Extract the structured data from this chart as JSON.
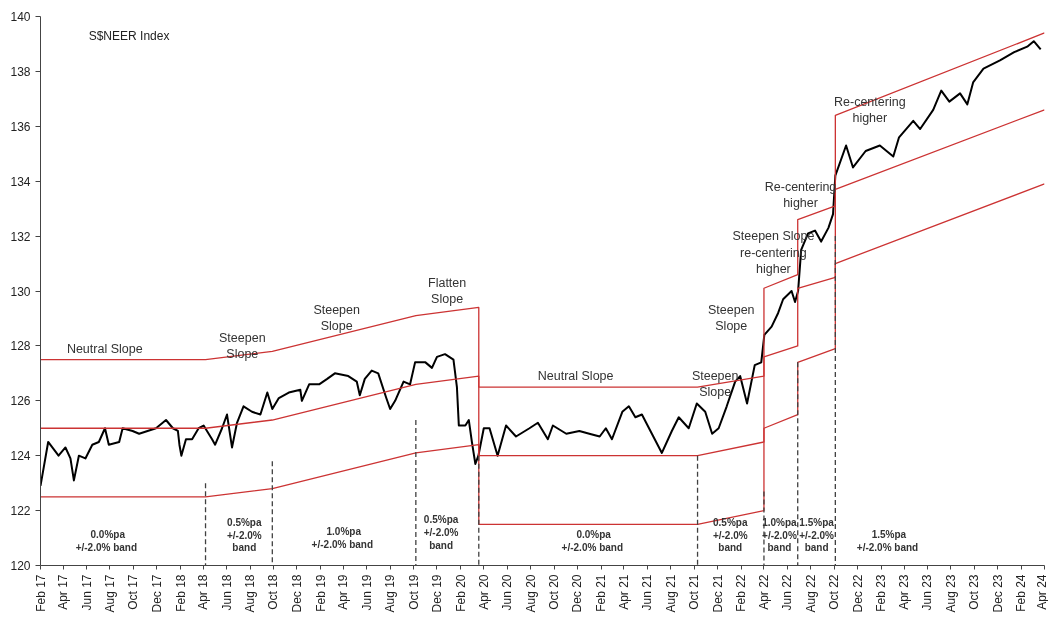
{
  "chart_data": {
    "type": "line",
    "title": "S$NEER Index",
    "xlim": [
      "2017-02-01",
      "2024-04-01"
    ],
    "xticks": [
      {
        "value": "2017-02",
        "label": "Feb 17"
      },
      {
        "value": "2017-04",
        "label": "Apr 17"
      },
      {
        "value": "2017-06",
        "label": "Jun 17"
      },
      {
        "value": "2017-08",
        "label": "Aug 17"
      },
      {
        "value": "2017-10",
        "label": "Oct 17"
      },
      {
        "value": "2017-12",
        "label": "Dec 17"
      },
      {
        "value": "2018-02",
        "label": "Feb 18"
      },
      {
        "value": "2018-04",
        "label": "Apr 18"
      },
      {
        "value": "2018-06",
        "label": "Jun 18"
      },
      {
        "value": "2018-08",
        "label": "Aug 18"
      },
      {
        "value": "2018-10",
        "label": "Oct 18"
      },
      {
        "value": "2018-12",
        "label": "Dec 18"
      },
      {
        "value": "2019-02",
        "label": "Feb 19"
      },
      {
        "value": "2019-04",
        "label": "Apr 19"
      },
      {
        "value": "2019-06",
        "label": "Jun 19"
      },
      {
        "value": "2019-08",
        "label": "Aug 19"
      },
      {
        "value": "2019-10",
        "label": "Oct 19"
      },
      {
        "value": "2019-12",
        "label": "Dec 19"
      },
      {
        "value": "2020-02",
        "label": "Feb 20"
      },
      {
        "value": "2020-04",
        "label": "Apr 20"
      },
      {
        "value": "2020-06",
        "label": "Jun 20"
      },
      {
        "value": "2020-08",
        "label": "Aug 20"
      },
      {
        "value": "2020-10",
        "label": "Oct 20"
      },
      {
        "value": "2020-12",
        "label": "Dec 20"
      },
      {
        "value": "2021-02",
        "label": "Feb 21"
      },
      {
        "value": "2021-04",
        "label": "Apr 21"
      },
      {
        "value": "2021-06",
        "label": "Jun 21"
      },
      {
        "value": "2021-08",
        "label": "Aug 21"
      },
      {
        "value": "2021-10",
        "label": "Oct 21"
      },
      {
        "value": "2021-12",
        "label": "Dec 21"
      },
      {
        "value": "2022-02",
        "label": "Feb 22"
      },
      {
        "value": "2022-04",
        "label": "Apr 22"
      },
      {
        "value": "2022-06",
        "label": "Jun 22"
      },
      {
        "value": "2022-08",
        "label": "Aug 22"
      },
      {
        "value": "2022-10",
        "label": "Oct 22"
      },
      {
        "value": "2022-12",
        "label": "Dec 22"
      },
      {
        "value": "2023-02",
        "label": "Feb 23"
      },
      {
        "value": "2023-04",
        "label": "Apr 23"
      },
      {
        "value": "2023-06",
        "label": "Jun 23"
      },
      {
        "value": "2023-08",
        "label": "Aug 23"
      },
      {
        "value": "2023-10",
        "label": "Oct 23"
      },
      {
        "value": "2023-12",
        "label": "Dec 23"
      },
      {
        "value": "2024-02",
        "label": "Feb 24"
      },
      {
        "value": "2024-04",
        "label": "Apr 24"
      }
    ],
    "ylim": [
      120,
      140
    ],
    "yticks": [
      120,
      122,
      124,
      126,
      128,
      130,
      132,
      134,
      136,
      138,
      140
    ],
    "series": [
      {
        "color": "#000000",
        "x": [
          "2017-02-01",
          "2017-02-21",
          "2017-03-20",
          "2017-04-07",
          "2017-04-20",
          "2017-04-29",
          "2017-05-12",
          "2017-05-29",
          "2017-06-16",
          "2017-07-03",
          "2017-07-19",
          "2017-07-29",
          "2017-08-25",
          "2017-09-03",
          "2017-09-29",
          "2017-10-16",
          "2017-11-29",
          "2017-12-25",
          "2018-01-12",
          "2018-01-25",
          "2018-01-29",
          "2018-02-03",
          "2018-02-15",
          "2018-03-03",
          "2018-03-20",
          "2018-04-02",
          "2018-04-24",
          "2018-05-02",
          "2018-05-20",
          "2018-06-02",
          "2018-06-15",
          "2018-06-28",
          "2018-07-15",
          "2018-08-06",
          "2018-08-28",
          "2018-09-15",
          "2018-09-28",
          "2018-10-15",
          "2018-11-10",
          "2018-12-10",
          "2018-12-14",
          "2019-01-02",
          "2019-01-28",
          "2019-02-18",
          "2019-03-10",
          "2019-04-14",
          "2019-05-06",
          "2019-05-14",
          "2019-05-27",
          "2019-06-14",
          "2019-07-01",
          "2019-07-22",
          "2019-08-01",
          "2019-08-14",
          "2019-09-05",
          "2019-09-22",
          "2019-10-05",
          "2019-11-01",
          "2019-11-18",
          "2019-12-01",
          "2019-12-22",
          "2020-01-13",
          "2020-01-22",
          "2020-01-27",
          "2020-02-13",
          "2020-02-22",
          "2020-03-01",
          "2020-03-10",
          "2020-03-18",
          "2020-04-01",
          "2020-04-16",
          "2020-05-07",
          "2020-05-29",
          "2020-06-24",
          "2020-07-29",
          "2020-08-20",
          "2020-09-15",
          "2020-09-28",
          "2020-11-02",
          "2020-12-06",
          "2021-01-01",
          "2021-01-28",
          "2021-02-13",
          "2021-03-01",
          "2021-03-28",
          "2021-04-14",
          "2021-05-01",
          "2021-05-18",
          "2021-06-13",
          "2021-07-09",
          "2021-08-04",
          "2021-08-22",
          "2021-09-17",
          "2021-10-08",
          "2021-10-30",
          "2021-11-17",
          "2021-12-04",
          "2021-12-25",
          "2022-01-16",
          "2022-01-29",
          "2022-02-16",
          "2022-03-08",
          "2022-03-25",
          "2022-04-02",
          "2022-04-21",
          "2022-05-08",
          "2022-05-21",
          "2022-06-12",
          "2022-06-21",
          "2022-06-29",
          "2022-07-07",
          "2022-07-25",
          "2022-08-12",
          "2022-08-28",
          "2022-09-16",
          "2022-09-28",
          "2022-10-04",
          "2022-11-01",
          "2022-11-19",
          "2022-12-22",
          "2023-01-28",
          "2023-03-04",
          "2023-03-19",
          "2023-04-25",
          "2023-05-13",
          "2023-06-16",
          "2023-07-07",
          "2023-07-28",
          "2023-08-25",
          "2023-09-13",
          "2023-09-28",
          "2023-10-25",
          "2023-12-07",
          "2024-01-13",
          "2024-02-16",
          "2024-03-04",
          "2024-03-22"
        ],
        "values": [
          122.9,
          124.5,
          124.0,
          124.3,
          123.9,
          123.1,
          124.0,
          123.9,
          124.4,
          124.5,
          125.0,
          124.4,
          124.5,
          125.0,
          124.9,
          124.8,
          125.0,
          125.3,
          125.0,
          124.9,
          124.4,
          124.0,
          124.6,
          124.6,
          125.0,
          125.1,
          124.6,
          124.4,
          125.0,
          125.5,
          124.3,
          125.2,
          125.8,
          125.6,
          125.5,
          126.3,
          125.7,
          126.1,
          126.3,
          126.4,
          126.0,
          126.6,
          126.6,
          126.8,
          127.0,
          126.9,
          126.7,
          126.2,
          126.8,
          127.1,
          127.0,
          126.1,
          125.7,
          126.0,
          126.7,
          126.6,
          127.4,
          127.4,
          127.2,
          127.6,
          127.7,
          127.5,
          126.5,
          125.1,
          125.1,
          125.3,
          124.5,
          123.7,
          124.0,
          125.0,
          125.0,
          124.0,
          125.1,
          124.7,
          125.0,
          125.2,
          124.6,
          125.1,
          124.8,
          124.9,
          124.8,
          124.7,
          125.0,
          124.6,
          125.6,
          125.8,
          125.4,
          125.5,
          124.8,
          124.1,
          124.9,
          125.4,
          125.0,
          125.9,
          125.6,
          124.8,
          125.0,
          125.8,
          126.7,
          126.9,
          125.9,
          127.3,
          127.4,
          128.4,
          128.7,
          129.2,
          129.7,
          130.0,
          129.6,
          130.0,
          131.5,
          132.1,
          132.2,
          131.8,
          132.3,
          132.8,
          134.2,
          135.3,
          134.5,
          135.1,
          135.3,
          134.9,
          135.6,
          136.2,
          135.9,
          136.6,
          137.3,
          136.9,
          137.2,
          136.8,
          137.6,
          138.1,
          138.4,
          138.7,
          138.9,
          139.1,
          138.8
        ]
      },
      {
        "color": "#cc3333",
        "x": [
          "2017-02-01",
          "2018-04-07",
          "2018-09-28",
          "2019-10-07",
          "2020-03-19",
          "2020-03-19",
          "2021-10-10",
          "2022-04-01",
          "2022-04-01",
          "2022-06-28",
          "2022-06-28",
          "2022-10-04",
          "2022-10-04",
          "2024-04-01"
        ],
        "values": [
          127.5,
          127.5,
          127.8,
          129.1,
          129.4,
          126.5,
          126.5,
          126.9,
          130.1,
          130.6,
          132.6,
          133.1,
          136.4,
          139.4
        ]
      },
      {
        "color": "#cc3333",
        "x": [
          "2017-02-01",
          "2018-04-07",
          "2018-09-28",
          "2019-10-07",
          "2020-03-19",
          "2020-03-19",
          "2021-10-10",
          "2022-04-01",
          "2022-04-01",
          "2022-06-28",
          "2022-06-28",
          "2022-10-04",
          "2022-10-04",
          "2024-04-01"
        ],
        "values": [
          125.0,
          125.0,
          125.3,
          126.6,
          126.9,
          124.0,
          124.0,
          124.5,
          127.6,
          128.0,
          130.1,
          130.5,
          133.7,
          136.6
        ]
      },
      {
        "color": "#cc3333",
        "x": [
          "2017-02-01",
          "2018-04-07",
          "2018-09-28",
          "2019-10-07",
          "2020-03-19",
          "2020-03-19",
          "2021-10-10",
          "2022-04-01",
          "2022-04-01",
          "2022-06-28",
          "2022-06-28",
          "2022-10-04",
          "2022-10-04",
          "2024-04-01"
        ],
        "values": [
          122.5,
          122.5,
          122.8,
          124.1,
          124.4,
          121.5,
          121.5,
          122.0,
          125.0,
          125.5,
          127.4,
          127.9,
          131.0,
          133.9
        ]
      },
      {
        "color": "#404040",
        "line_style": "dashed",
        "x": [
          "2018-04-07",
          "2018-04-07"
        ],
        "values": [
          123.0,
          120
        ]
      },
      {
        "color": "#404040",
        "line_style": "dashed",
        "x": [
          "2018-09-28",
          "2018-09-28"
        ],
        "values": [
          123.8,
          120
        ]
      },
      {
        "color": "#404040",
        "line_style": "dashed",
        "x": [
          "2019-10-07",
          "2019-10-07"
        ],
        "values": [
          125.3,
          120
        ]
      },
      {
        "color": "#404040",
        "line_style": "dashed",
        "x": [
          "2020-03-19",
          "2020-03-19"
        ],
        "values": [
          124.0,
          120
        ]
      },
      {
        "color": "#404040",
        "line_style": "dashed",
        "x": [
          "2021-10-10",
          "2021-10-10"
        ],
        "values": [
          124.0,
          120
        ]
      },
      {
        "color": "#404040",
        "line_style": "dashed",
        "x": [
          "2022-04-01",
          "2022-04-01"
        ],
        "values": [
          122.7,
          120
        ]
      },
      {
        "color": "#404040",
        "line_style": "dashed",
        "x": [
          "2022-06-28",
          "2022-06-28"
        ],
        "values": [
          127.4,
          120
        ]
      },
      {
        "color": "#404040",
        "line_style": "dashed",
        "x": [
          "2022-10-04",
          "2022-10-04"
        ],
        "values": [
          132.0,
          120
        ]
      }
    ],
    "annotations": [
      "Neutral Slope",
      "Steepen\nSlope",
      "Steepen\nSlope",
      "Flatten\nSlope",
      "Neutral Slope",
      "Steepen\nSlope",
      "Steepen\nSlope",
      "Steepen Slope\nre-centering\nhigher",
      "Re-centering\nhigher",
      "Re-centering\nhigher",
      "0.0%pa\n+/-2.0%  band",
      "0.5%pa\n+/-2.0%\nband",
      "1.0%pa\n+/-2.0%  band",
      "0.5%pa\n+/-2.0%\nband",
      "0.0%pa\n+/-2.0%  band",
      "0.5%pa\n+/-2.0%\nband",
      "1.0%pa\n+/-2.0%\nband",
      "1.5%pa\n+/-2.0%\nband",
      "1.5%pa\n+/-2.0%  band"
    ]
  }
}
